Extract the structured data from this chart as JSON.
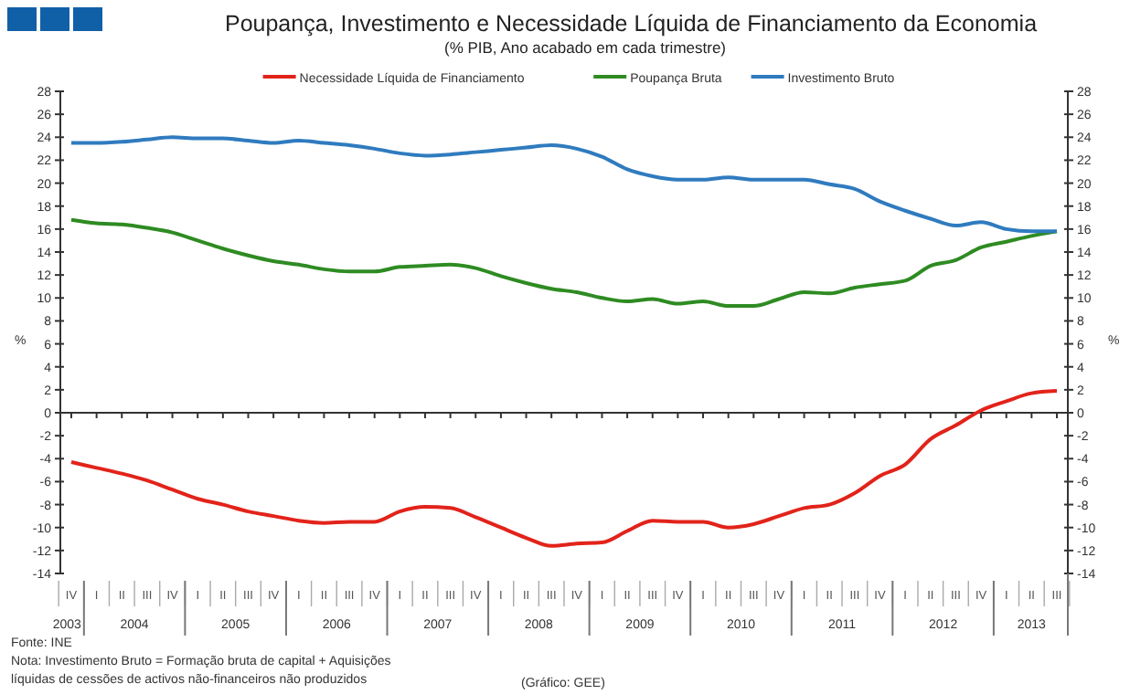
{
  "chart_data": {
    "type": "line",
    "title": "Poupança, Investimento e Necessidade Líquida de Financiamento da Economia",
    "subtitle": "(% PIB, Ano acabado em cada trimestre)",
    "ylabel": "%",
    "y2label": "%",
    "categories": [
      "IV",
      "I",
      "II",
      "III",
      "IV",
      "I",
      "II",
      "III",
      "IV",
      "I",
      "II",
      "III",
      "IV",
      "I",
      "II",
      "III",
      "IV",
      "I",
      "II",
      "III",
      "IV",
      "I",
      "II",
      "III",
      "IV",
      "I",
      "II",
      "III",
      "IV",
      "I",
      "II",
      "III",
      "IV",
      "I",
      "II",
      "III",
      "IV",
      "I",
      "II",
      "III"
    ],
    "series": [
      {
        "name": "Necessidade Líquida de Financiamento",
        "color": "#e2231a",
        "values": [
          -4.3,
          -4.8,
          -5.3,
          -5.9,
          -6.7,
          -7.5,
          -8.0,
          -8.6,
          -9.0,
          -9.4,
          -9.6,
          -9.5,
          -9.5,
          -8.6,
          -8.2,
          -8.3,
          -9.1,
          -10.0,
          -10.9,
          -11.6,
          -11.4,
          -11.3,
          -10.3,
          -9.4,
          -9.5,
          -9.5,
          -10.0,
          -9.7,
          -9.0,
          -8.3,
          -8.0,
          -7.0,
          -5.5,
          -4.5,
          -2.3,
          -1.1,
          0.2,
          1.0,
          1.7,
          1.9
        ]
      },
      {
        "name": "Poupança Bruta",
        "color": "#2e8b22",
        "values": [
          16.8,
          16.5,
          16.4,
          16.1,
          15.7,
          15.0,
          14.3,
          13.7,
          13.2,
          12.9,
          12.5,
          12.3,
          12.3,
          12.7,
          12.8,
          12.9,
          12.6,
          11.9,
          11.3,
          10.8,
          10.5,
          10.0,
          9.7,
          9.9,
          9.5,
          9.7,
          9.3,
          9.3,
          9.9,
          10.5,
          10.4,
          10.9,
          11.2,
          11.5,
          12.8,
          13.3,
          14.4,
          14.9,
          15.4,
          15.8
        ]
      },
      {
        "name": "Investimento Bruto",
        "color": "#2f7bbf",
        "values": [
          23.5,
          23.5,
          23.6,
          23.8,
          24.0,
          23.9,
          23.9,
          23.7,
          23.5,
          23.7,
          23.5,
          23.3,
          23.0,
          22.6,
          22.4,
          22.5,
          22.7,
          22.9,
          23.1,
          23.3,
          23.0,
          22.3,
          21.2,
          20.6,
          20.3,
          20.3,
          20.5,
          20.3,
          20.3,
          20.3,
          19.9,
          19.5,
          18.4,
          17.6,
          16.9,
          16.3,
          16.6,
          16.0,
          15.8,
          15.8
        ]
      }
    ],
    "ylim": [
      -14,
      28
    ],
    "yticks": [
      -14,
      -12,
      -10,
      -8,
      -6,
      -4,
      -2,
      0,
      2,
      4,
      6,
      8,
      10,
      12,
      14,
      16,
      18,
      20,
      22,
      24,
      26,
      28
    ],
    "y2lim": [
      -14,
      28
    ],
    "y2ticks": [
      -14,
      -12,
      -10,
      -8,
      -6,
      -4,
      -2,
      0,
      2,
      4,
      6,
      8,
      10,
      12,
      14,
      16,
      18,
      20,
      22,
      24,
      26,
      28
    ],
    "legend": "top",
    "marker": "none",
    "line_style": "solid",
    "annotations": [
      "2003",
      "2004",
      "2005",
      "2006",
      "2007",
      "2008",
      "2009",
      "2010",
      "2011",
      "2012",
      "2013",
      "Fonte: INE",
      "Nota: Investimento Bruto = Formação bruta de capital + Aquisições",
      "líquidas de cessões de activos não-financeiros não produzidos",
      "(Gráfico: GEE)"
    ]
  }
}
